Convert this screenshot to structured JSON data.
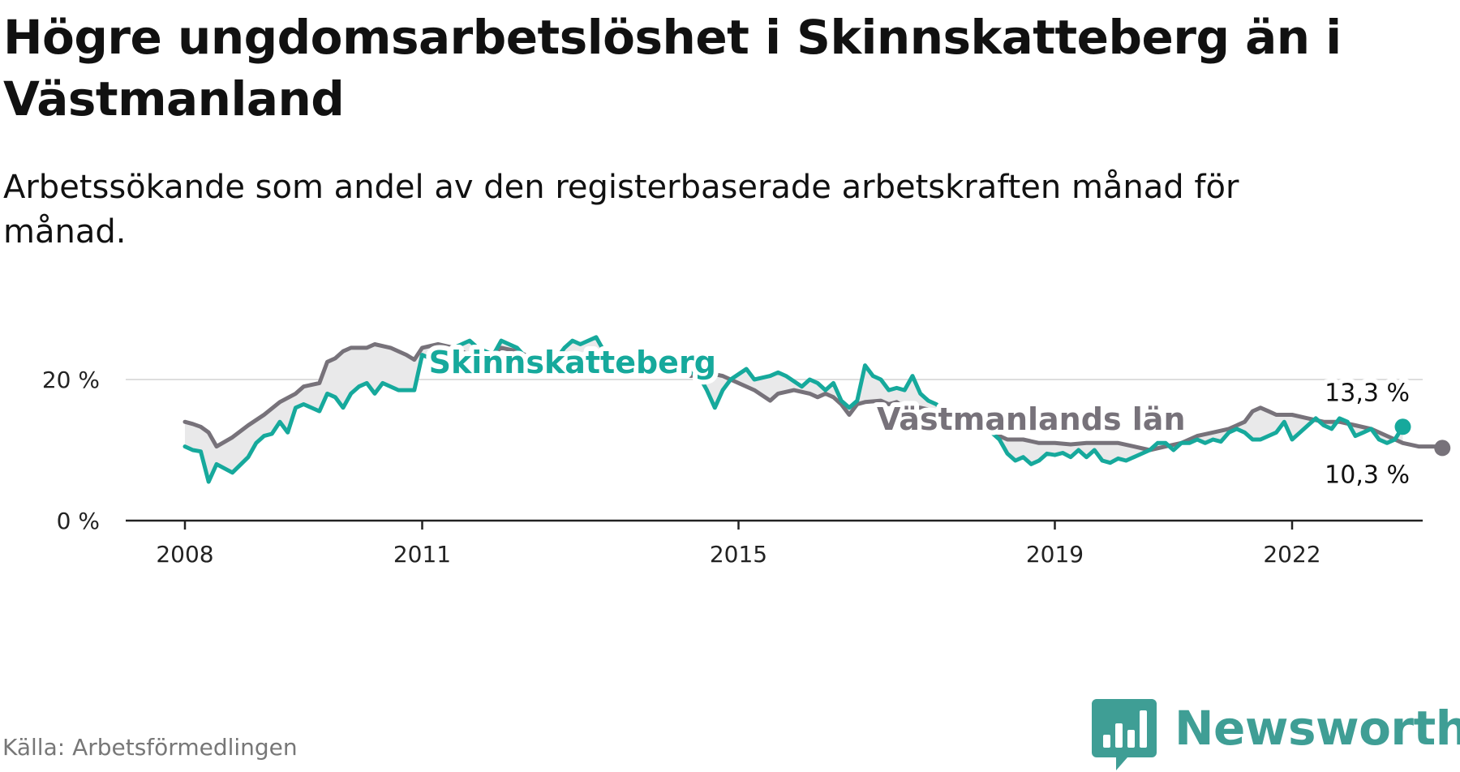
{
  "header": {
    "title": "Högre ungdomsarbetslöshet i Skinnskatteberg än i Västmanland",
    "subtitle": "Arbetssökande som andel av den registerbaserade arbetskraften månad för månad."
  },
  "footer": {
    "source": "Källa: Arbetsförmedlingen",
    "logo_text": "Newsworthy"
  },
  "colors": {
    "skinnskatteberg": "#16a99c",
    "vastmanland": "#77727a",
    "fill": "#e9e9ea",
    "logo": "#3f9e95"
  },
  "chart_data": {
    "type": "line",
    "title": "Högre ungdomsarbetslöshet i Skinnskatteberg än i Västmanland",
    "subtitle": "Arbetssökande som andel av den registerbaserade arbetskraften månad för månad.",
    "xlabel": "",
    "ylabel": "",
    "ylim": [
      0,
      30
    ],
    "xlim": [
      2007.5,
      2023.6
    ],
    "grid": true,
    "y_ticks": [
      {
        "value": 0,
        "label": "0 %"
      },
      {
        "value": 20,
        "label": "20 %"
      }
    ],
    "x_ticks": [
      {
        "value": 2008,
        "label": "2008"
      },
      {
        "value": 2011,
        "label": "2011"
      },
      {
        "value": 2015,
        "label": "2015"
      },
      {
        "value": 2019,
        "label": "2019"
      },
      {
        "value": 2022,
        "label": "2022"
      }
    ],
    "series": [
      {
        "name": "Skinnskatteberg",
        "label_x": 2012.9,
        "end_label": "13,3 %",
        "points": [
          [
            2008.0,
            10.5
          ],
          [
            2008.1,
            10.0
          ],
          [
            2008.2,
            9.8
          ],
          [
            2008.3,
            5.5
          ],
          [
            2008.4,
            8.0
          ],
          [
            2008.6,
            6.8
          ],
          [
            2008.8,
            9.0
          ],
          [
            2008.9,
            11.0
          ],
          [
            2009.0,
            12.0
          ],
          [
            2009.1,
            12.3
          ],
          [
            2009.2,
            14.0
          ],
          [
            2009.3,
            12.5
          ],
          [
            2009.4,
            16.0
          ],
          [
            2009.5,
            16.5
          ],
          [
            2009.7,
            15.5
          ],
          [
            2009.8,
            18.0
          ],
          [
            2009.9,
            17.5
          ],
          [
            2010.0,
            16.0
          ],
          [
            2010.1,
            18.0
          ],
          [
            2010.2,
            19.0
          ],
          [
            2010.3,
            19.5
          ],
          [
            2010.4,
            18.0
          ],
          [
            2010.5,
            19.5
          ],
          [
            2010.7,
            18.5
          ],
          [
            2010.9,
            18.5
          ],
          [
            2011.0,
            23.5
          ],
          [
            2011.1,
            23.0
          ],
          [
            2011.2,
            24.0
          ],
          [
            2011.4,
            24.5
          ],
          [
            2011.6,
            25.5
          ],
          [
            2011.7,
            24.5
          ],
          [
            2011.9,
            23.5
          ],
          [
            2012.0,
            25.5
          ],
          [
            2012.1,
            25.0
          ],
          [
            2012.2,
            24.5
          ],
          [
            2012.4,
            22.0
          ],
          [
            2012.5,
            21.5
          ],
          [
            2012.6,
            22.5
          ],
          [
            2012.7,
            23.0
          ],
          [
            2012.8,
            24.5
          ],
          [
            2012.9,
            25.5
          ],
          [
            2013.0,
            25.0
          ],
          [
            2013.2,
            26.0
          ],
          [
            2013.3,
            24.0
          ],
          [
            2013.5,
            22.5
          ],
          [
            2013.6,
            23.5
          ],
          [
            2013.8,
            22.0
          ],
          [
            2014.0,
            21.5
          ],
          [
            2014.2,
            23.0
          ],
          [
            2014.3,
            21.5
          ],
          [
            2014.5,
            20.5
          ],
          [
            2014.6,
            18.5
          ],
          [
            2014.7,
            16.0
          ],
          [
            2014.8,
            18.5
          ],
          [
            2014.9,
            20.0
          ],
          [
            2015.1,
            21.5
          ],
          [
            2015.2,
            20.0
          ],
          [
            2015.4,
            20.5
          ],
          [
            2015.5,
            21.0
          ],
          [
            2015.6,
            20.5
          ],
          [
            2015.8,
            19.0
          ],
          [
            2015.9,
            20.0
          ],
          [
            2016.0,
            19.5
          ],
          [
            2016.1,
            18.5
          ],
          [
            2016.2,
            19.5
          ],
          [
            2016.3,
            17.0
          ],
          [
            2016.4,
            16.0
          ],
          [
            2016.5,
            17.0
          ],
          [
            2016.6,
            22.0
          ],
          [
            2016.7,
            20.5
          ],
          [
            2016.8,
            20.0
          ],
          [
            2016.9,
            18.5
          ],
          [
            2017.0,
            18.8
          ],
          [
            2017.1,
            18.5
          ],
          [
            2017.2,
            20.5
          ],
          [
            2017.3,
            18.0
          ],
          [
            2017.4,
            17.0
          ],
          [
            2017.5,
            16.5
          ],
          [
            2017.6,
            15.5
          ],
          [
            2017.7,
            15.0
          ],
          [
            2017.8,
            14.8
          ],
          [
            2017.9,
            14.5
          ],
          [
            2018.0,
            14.0
          ],
          [
            2018.1,
            13.5
          ],
          [
            2018.2,
            12.5
          ],
          [
            2018.3,
            11.5
          ],
          [
            2018.4,
            9.5
          ],
          [
            2018.5,
            8.5
          ],
          [
            2018.6,
            9.0
          ],
          [
            2018.7,
            8.0
          ],
          [
            2018.8,
            8.5
          ],
          [
            2018.9,
            9.5
          ],
          [
            2019.0,
            9.3
          ],
          [
            2019.1,
            9.6
          ],
          [
            2019.2,
            9.0
          ],
          [
            2019.3,
            10.0
          ],
          [
            2019.4,
            9.0
          ],
          [
            2019.5,
            10.0
          ],
          [
            2019.6,
            8.5
          ],
          [
            2019.7,
            8.2
          ],
          [
            2019.8,
            8.8
          ],
          [
            2019.9,
            8.5
          ],
          [
            2020.0,
            9.0
          ],
          [
            2020.1,
            9.5
          ],
          [
            2020.2,
            10.0
          ],
          [
            2020.3,
            11.0
          ],
          [
            2020.4,
            11.0
          ],
          [
            2020.5,
            10.0
          ],
          [
            2020.6,
            11.0
          ],
          [
            2020.7,
            11.0
          ],
          [
            2020.8,
            11.5
          ],
          [
            2020.9,
            11.0
          ],
          [
            2021.0,
            11.5
          ],
          [
            2021.1,
            11.2
          ],
          [
            2021.2,
            12.5
          ],
          [
            2021.3,
            13.0
          ],
          [
            2021.4,
            12.5
          ],
          [
            2021.5,
            11.5
          ],
          [
            2021.6,
            11.5
          ],
          [
            2021.7,
            12.0
          ],
          [
            2021.8,
            12.5
          ],
          [
            2021.9,
            14.0
          ],
          [
            2022.0,
            11.5
          ],
          [
            2022.1,
            12.5
          ],
          [
            2022.2,
            13.5
          ],
          [
            2022.3,
            14.5
          ],
          [
            2022.4,
            13.5
          ],
          [
            2022.5,
            13.0
          ],
          [
            2022.6,
            14.5
          ],
          [
            2022.7,
            14.0
          ],
          [
            2022.8,
            12.0
          ],
          [
            2022.9,
            12.5
          ],
          [
            2023.0,
            13.0
          ],
          [
            2023.1,
            11.5
          ],
          [
            2023.2,
            11.0
          ],
          [
            2023.3,
            11.5
          ],
          [
            2023.4,
            13.3
          ]
        ]
      },
      {
        "name": "Västmanlands län",
        "label_x": 2018.7,
        "end_label": "10,3 %",
        "points": [
          [
            2008.0,
            14.0
          ],
          [
            2008.1,
            13.7
          ],
          [
            2008.2,
            13.3
          ],
          [
            2008.3,
            12.5
          ],
          [
            2008.4,
            10.5
          ],
          [
            2008.6,
            11.8
          ],
          [
            2008.8,
            13.5
          ],
          [
            2009.0,
            15.0
          ],
          [
            2009.2,
            16.8
          ],
          [
            2009.4,
            18.0
          ],
          [
            2009.5,
            19.0
          ],
          [
            2009.7,
            19.5
          ],
          [
            2009.8,
            22.5
          ],
          [
            2009.9,
            23.0
          ],
          [
            2010.0,
            24.0
          ],
          [
            2010.1,
            24.5
          ],
          [
            2010.3,
            24.5
          ],
          [
            2010.4,
            25.0
          ],
          [
            2010.6,
            24.5
          ],
          [
            2010.8,
            23.5
          ],
          [
            2010.9,
            22.8
          ],
          [
            2011.0,
            24.5
          ],
          [
            2011.2,
            25.0
          ],
          [
            2011.4,
            24.5
          ],
          [
            2011.6,
            23.5
          ],
          [
            2011.8,
            23.0
          ],
          [
            2012.0,
            24.5
          ],
          [
            2012.2,
            24.0
          ],
          [
            2012.4,
            23.0
          ],
          [
            2012.6,
            22.0
          ],
          [
            2012.8,
            21.5
          ],
          [
            2013.0,
            21.8
          ],
          [
            2013.2,
            22.5
          ],
          [
            2013.4,
            22.0
          ],
          [
            2013.6,
            21.5
          ],
          [
            2013.8,
            21.0
          ],
          [
            2014.0,
            21.5
          ],
          [
            2014.2,
            21.0
          ],
          [
            2014.4,
            20.5
          ],
          [
            2014.6,
            21.0
          ],
          [
            2014.8,
            20.5
          ],
          [
            2015.0,
            19.5
          ],
          [
            2015.2,
            18.5
          ],
          [
            2015.4,
            17.0
          ],
          [
            2015.5,
            18.0
          ],
          [
            2015.7,
            18.5
          ],
          [
            2015.9,
            18.0
          ],
          [
            2016.0,
            17.5
          ],
          [
            2016.1,
            18.0
          ],
          [
            2016.2,
            17.5
          ],
          [
            2016.3,
            16.5
          ],
          [
            2016.4,
            15.0
          ],
          [
            2016.5,
            16.5
          ],
          [
            2016.6,
            16.8
          ],
          [
            2016.8,
            17.0
          ],
          [
            2016.9,
            16.5
          ],
          [
            2017.0,
            16.8
          ],
          [
            2017.1,
            16.0
          ],
          [
            2017.3,
            16.0
          ],
          [
            2017.5,
            15.5
          ],
          [
            2017.7,
            15.0
          ],
          [
            2017.9,
            14.0
          ],
          [
            2018.0,
            13.5
          ],
          [
            2018.2,
            12.5
          ],
          [
            2018.4,
            11.5
          ],
          [
            2018.6,
            11.5
          ],
          [
            2018.8,
            11.0
          ],
          [
            2019.0,
            11.0
          ],
          [
            2019.2,
            10.8
          ],
          [
            2019.4,
            11.0
          ],
          [
            2019.6,
            11.0
          ],
          [
            2019.8,
            11.0
          ],
          [
            2020.0,
            10.5
          ],
          [
            2020.2,
            10.0
          ],
          [
            2020.4,
            10.5
          ],
          [
            2020.6,
            11.0
          ],
          [
            2020.8,
            12.0
          ],
          [
            2021.0,
            12.5
          ],
          [
            2021.2,
            13.0
          ],
          [
            2021.4,
            14.0
          ],
          [
            2021.5,
            15.5
          ],
          [
            2021.6,
            16.0
          ],
          [
            2021.7,
            15.5
          ],
          [
            2021.8,
            15.0
          ],
          [
            2022.0,
            15.0
          ],
          [
            2022.2,
            14.5
          ],
          [
            2022.4,
            14.0
          ],
          [
            2022.6,
            14.0
          ],
          [
            2022.8,
            13.5
          ],
          [
            2023.0,
            13.0
          ],
          [
            2023.2,
            12.0
          ],
          [
            2023.4,
            11.0
          ],
          [
            2023.6,
            10.5
          ],
          [
            2023.8,
            10.5
          ],
          [
            2023.9,
            10.3
          ]
        ]
      }
    ]
  }
}
